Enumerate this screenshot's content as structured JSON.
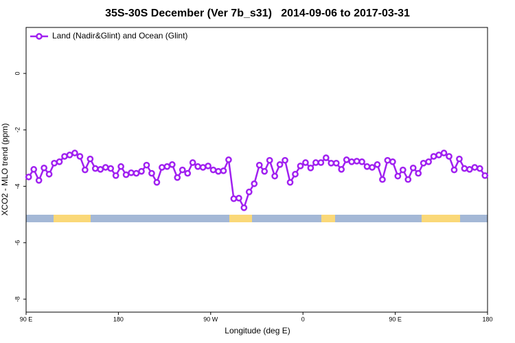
{
  "chart_data": {
    "type": "line",
    "title": "35S-30S December (Ver 7b_s31)   2014-09-06 to 2017-03-31",
    "x_label": "Longitude (deg E)",
    "y_label": "XCO2 - MLO trend (ppm)",
    "xlim": [
      90,
      540
    ],
    "xticks": [
      {
        "value": 90,
        "label": "90 E"
      },
      {
        "value": 180,
        "label": "180"
      },
      {
        "value": 270,
        "label": "90 W"
      },
      {
        "value": 360,
        "label": "0"
      },
      {
        "value": 450,
        "label": "90 E"
      },
      {
        "value": 540,
        "label": "180"
      }
    ],
    "ylim": [
      -8.46,
      1.63
    ],
    "yticks": [
      0,
      -2,
      -4,
      -6,
      -8
    ],
    "legend": "upper left",
    "x": [
      92.5,
      97.5,
      102.5,
      107.5,
      112.5,
      117.5,
      122.5,
      127.5,
      132.5,
      137.5,
      142.5,
      147.5,
      152.5,
      157.5,
      162.5,
      167.5,
      172.5,
      177.5,
      182.5,
      187.5,
      192.5,
      197.5,
      202.5,
      207.5,
      212.5,
      217.5,
      222.5,
      227.5,
      232.5,
      237.5,
      242.5,
      247.5,
      252.5,
      257.5,
      262.5,
      267.5,
      272.5,
      277.5,
      282.5,
      287.5,
      292.5,
      297.5,
      302.5,
      307.5,
      312.5,
      317.5,
      322.5,
      327.5,
      332.5,
      337.5,
      342.5,
      347.5,
      352.5,
      357.5,
      362.5,
      367.5,
      372.5,
      377.5,
      382.5,
      387.5,
      392.5,
      397.5,
      402.5,
      407.5,
      412.5,
      417.5,
      422.5,
      427.5,
      432.5,
      437.5,
      442.5,
      447.5,
      452.5,
      457.5,
      462.5,
      467.5,
      472.5,
      477.5,
      482.5,
      487.5,
      492.5,
      497.5,
      502.5,
      507.5,
      512.5,
      517.5,
      522.5,
      527.5,
      532.5,
      537.5
    ],
    "series": [
      {
        "name": "Land (Nadir&Glint) and Ocean (Glint)",
        "color": "#a020f0",
        "values": [
          -3.67,
          -3.4,
          -3.79,
          -3.35,
          -3.57,
          -3.18,
          -3.13,
          -2.94,
          -2.89,
          -2.82,
          -2.94,
          -3.42,
          -3.03,
          -3.37,
          -3.4,
          -3.33,
          -3.37,
          -3.62,
          -3.3,
          -3.59,
          -3.52,
          -3.54,
          -3.47,
          -3.25,
          -3.54,
          -3.86,
          -3.33,
          -3.3,
          -3.23,
          -3.69,
          -3.42,
          -3.54,
          -3.16,
          -3.3,
          -3.33,
          -3.28,
          -3.42,
          -3.47,
          -3.45,
          -3.06,
          -4.44,
          -4.42,
          -4.76,
          -4.2,
          -3.91,
          -3.25,
          -3.47,
          -3.08,
          -3.64,
          -3.23,
          -3.08,
          -3.86,
          -3.57,
          -3.28,
          -3.16,
          -3.35,
          -3.16,
          -3.16,
          -2.99,
          -3.18,
          -3.18,
          -3.4,
          -3.06,
          -3.13,
          -3.11,
          -3.13,
          -3.3,
          -3.33,
          -3.23,
          -3.76,
          -3.08,
          -3.13,
          -3.64,
          -3.42,
          -3.76,
          -3.35,
          -3.54,
          -3.18,
          -3.13,
          -2.94,
          -2.89,
          -2.82,
          -2.94,
          -3.42,
          -3.03,
          -3.37,
          -3.4,
          -3.33,
          -3.37,
          -3.62
        ]
      }
    ]
  }
}
